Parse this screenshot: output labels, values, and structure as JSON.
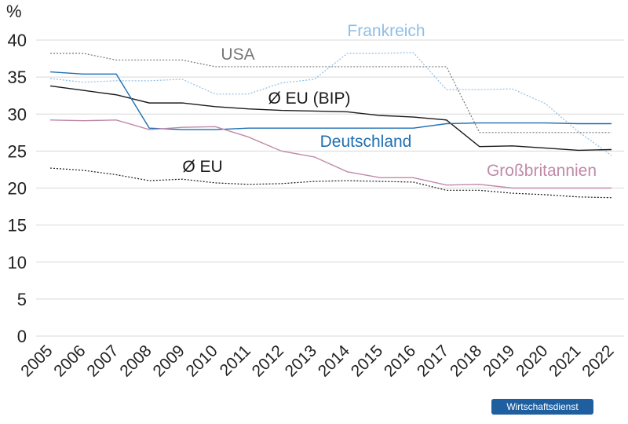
{
  "chart_data": {
    "type": "line",
    "y_label": "%",
    "logo": "Wirtschaftsdienst",
    "categories": [
      "2005",
      "2006",
      "2007",
      "2008",
      "2009",
      "2010",
      "2011",
      "2012",
      "2013",
      "2014",
      "2015",
      "2016",
      "2017",
      "2018",
      "2019",
      "2020",
      "2021",
      "2022"
    ],
    "ylim": [
      0,
      40
    ],
    "yticks": [
      0,
      5,
      10,
      15,
      20,
      25,
      30,
      35,
      40
    ],
    "grid": true,
    "series": [
      {
        "name": "Frankreich",
        "color": "#8fbfe6",
        "style": "dotted",
        "values": [
          34.8,
          34.3,
          34.5,
          34.5,
          34.7,
          32.7,
          32.7,
          34.2,
          34.7,
          38.2,
          38.2,
          38.3,
          33.3,
          33.3,
          33.4,
          31.4,
          27.6,
          24.4
        ]
      },
      {
        "name": "USA",
        "color": "#777777",
        "style": "dotted",
        "values": [
          38.2,
          38.2,
          37.3,
          37.3,
          37.3,
          36.4,
          36.4,
          36.4,
          36.4,
          36.4,
          36.4,
          36.4,
          36.4,
          27.5,
          27.5,
          27.5,
          27.5,
          27.5
        ]
      },
      {
        "name": "Ø EU (BIP)",
        "color": "#1a1a1a",
        "style": "solid",
        "values": [
          33.8,
          33.2,
          32.6,
          31.5,
          31.5,
          31.0,
          30.7,
          30.5,
          30.4,
          30.3,
          29.8,
          29.6,
          29.2,
          25.6,
          25.7,
          25.4,
          25.1,
          25.2
        ]
      },
      {
        "name": "Deutschland",
        "color": "#1f6fb2",
        "style": "solid",
        "values": [
          35.7,
          35.4,
          35.4,
          28.1,
          27.9,
          27.9,
          28.1,
          28.1,
          28.1,
          28.1,
          28.1,
          28.1,
          28.7,
          28.8,
          28.8,
          28.8,
          28.7,
          28.7
        ]
      },
      {
        "name": "Großbritannien",
        "color": "#c08aa8",
        "style": "solid",
        "values": [
          29.2,
          29.1,
          29.2,
          27.9,
          28.2,
          28.3,
          26.9,
          25.0,
          24.2,
          22.2,
          21.4,
          21.4,
          20.4,
          20.5,
          20.0,
          20.0,
          20.0,
          20.0
        ]
      },
      {
        "name": "Ø EU",
        "color": "#1a1a1a",
        "style": "dotted",
        "values": [
          22.7,
          22.4,
          21.8,
          21.0,
          21.2,
          20.7,
          20.5,
          20.6,
          20.9,
          21.0,
          20.9,
          20.8,
          19.7,
          19.7,
          19.3,
          19.1,
          18.8,
          18.7
        ]
      }
    ]
  }
}
